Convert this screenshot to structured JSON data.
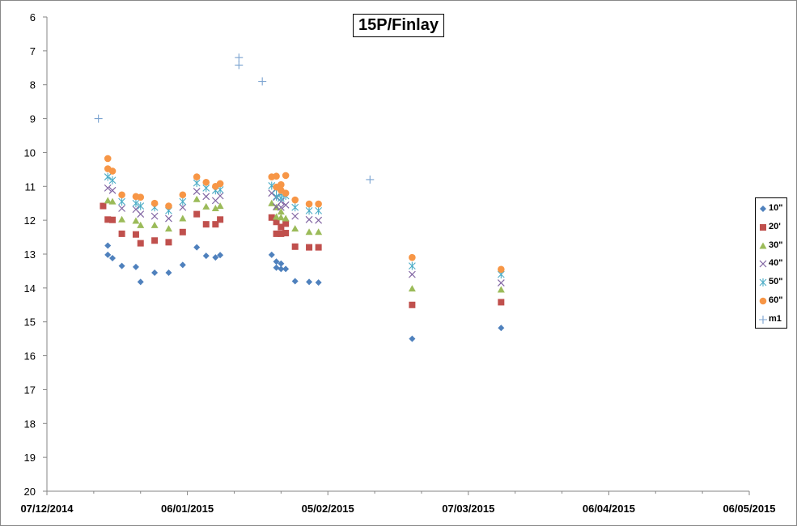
{
  "chart_data": {
    "type": "scatter",
    "title": "15P/Finlay",
    "xlabel": "",
    "ylabel": "",
    "x_ticks": [
      "07/12/2014",
      "06/01/2015",
      "05/02/2015",
      "07/03/2015",
      "06/04/2015",
      "06/05/2015"
    ],
    "y_ticks": [
      "6",
      "7",
      "8",
      "9",
      "10",
      "11",
      "12",
      "13",
      "14",
      "15",
      "16",
      "17",
      "18",
      "19",
      "20"
    ],
    "xlim": [
      "2014-12-07",
      "2015-05-06"
    ],
    "ylim": [
      6,
      20
    ],
    "y_inverted": true,
    "grid": false,
    "legend_position": "right",
    "series": [
      {
        "name": "10\"",
        "marker": "diamond",
        "color": "#4F81BD",
        "points": [
          [
            "2014-12-20",
            12.75
          ],
          [
            "2014-12-20",
            13.02
          ],
          [
            "2014-12-21",
            13.12
          ],
          [
            "2014-12-23",
            13.35
          ],
          [
            "2014-12-26",
            13.38
          ],
          [
            "2014-12-27",
            13.82
          ],
          [
            "2014-12-30",
            13.55
          ],
          [
            "2015-01-02",
            13.55
          ],
          [
            "2015-01-05",
            13.32
          ],
          [
            "2015-01-08",
            12.8
          ],
          [
            "2015-01-10",
            13.05
          ],
          [
            "2015-01-12",
            13.1
          ],
          [
            "2015-01-13",
            13.03
          ],
          [
            "2015-01-24",
            13.02
          ],
          [
            "2015-01-25",
            13.22
          ],
          [
            "2015-01-25",
            13.4
          ],
          [
            "2015-01-26",
            13.28
          ],
          [
            "2015-01-26",
            13.44
          ],
          [
            "2015-01-27",
            13.44
          ],
          [
            "2015-01-29",
            13.8
          ],
          [
            "2015-02-01",
            13.82
          ],
          [
            "2015-02-03",
            13.84
          ],
          [
            "2015-02-23",
            15.5
          ],
          [
            "2015-03-14",
            15.18
          ]
        ]
      },
      {
        "name": "20'",
        "marker": "square",
        "color": "#C0504D",
        "points": [
          [
            "2014-12-19",
            11.58
          ],
          [
            "2014-12-20",
            11.98
          ],
          [
            "2014-12-21",
            11.99
          ],
          [
            "2014-12-23",
            12.4
          ],
          [
            "2014-12-26",
            12.42
          ],
          [
            "2014-12-27",
            12.68
          ],
          [
            "2014-12-30",
            12.6
          ],
          [
            "2015-01-02",
            12.65
          ],
          [
            "2015-01-05",
            12.35
          ],
          [
            "2015-01-08",
            11.82
          ],
          [
            "2015-01-10",
            12.12
          ],
          [
            "2015-01-12",
            12.12
          ],
          [
            "2015-01-13",
            11.98
          ],
          [
            "2015-01-24",
            11.92
          ],
          [
            "2015-01-25",
            12.05
          ],
          [
            "2015-01-25",
            12.4
          ],
          [
            "2015-01-26",
            12.2
          ],
          [
            "2015-01-26",
            12.4
          ],
          [
            "2015-01-27",
            12.1
          ],
          [
            "2015-01-27",
            12.38
          ],
          [
            "2015-01-29",
            12.78
          ],
          [
            "2015-02-01",
            12.8
          ],
          [
            "2015-02-03",
            12.8
          ],
          [
            "2015-02-23",
            14.5
          ],
          [
            "2015-03-14",
            14.42
          ]
        ]
      },
      {
        "name": "30\"",
        "marker": "triangle",
        "color": "#9BBB59",
        "points": [
          [
            "2014-12-20",
            11.42
          ],
          [
            "2014-12-21",
            11.45
          ],
          [
            "2014-12-23",
            11.98
          ],
          [
            "2014-12-26",
            12.02
          ],
          [
            "2014-12-27",
            12.15
          ],
          [
            "2014-12-30",
            12.15
          ],
          [
            "2015-01-02",
            12.25
          ],
          [
            "2015-01-05",
            11.95
          ],
          [
            "2015-01-08",
            11.38
          ],
          [
            "2015-01-10",
            11.6
          ],
          [
            "2015-01-12",
            11.65
          ],
          [
            "2015-01-13",
            11.58
          ],
          [
            "2015-01-24",
            11.5
          ],
          [
            "2015-01-25",
            11.62
          ],
          [
            "2015-01-25",
            11.9
          ],
          [
            "2015-01-26",
            11.75
          ],
          [
            "2015-01-26",
            11.92
          ],
          [
            "2015-01-27",
            11.95
          ],
          [
            "2015-01-29",
            12.25
          ],
          [
            "2015-02-01",
            12.35
          ],
          [
            "2015-02-03",
            12.35
          ],
          [
            "2015-02-23",
            14.02
          ],
          [
            "2015-03-14",
            14.05
          ]
        ]
      },
      {
        "name": "40\"",
        "marker": "x",
        "color": "#8064A2",
        "points": [
          [
            "2014-12-20",
            11.05
          ],
          [
            "2014-12-21",
            11.12
          ],
          [
            "2014-12-23",
            11.65
          ],
          [
            "2014-12-26",
            11.68
          ],
          [
            "2014-12-27",
            11.82
          ],
          [
            "2014-12-30",
            11.88
          ],
          [
            "2015-01-02",
            11.95
          ],
          [
            "2015-01-05",
            11.62
          ],
          [
            "2015-01-08",
            11.15
          ],
          [
            "2015-01-10",
            11.3
          ],
          [
            "2015-01-12",
            11.42
          ],
          [
            "2015-01-13",
            11.28
          ],
          [
            "2015-01-24",
            11.2
          ],
          [
            "2015-01-25",
            11.32
          ],
          [
            "2015-01-25",
            11.6
          ],
          [
            "2015-01-26",
            11.45
          ],
          [
            "2015-01-26",
            11.62
          ],
          [
            "2015-01-27",
            11.55
          ],
          [
            "2015-01-29",
            11.88
          ],
          [
            "2015-02-01",
            11.98
          ],
          [
            "2015-02-03",
            12.0
          ],
          [
            "2015-02-23",
            13.6
          ],
          [
            "2015-03-14",
            13.85
          ]
        ]
      },
      {
        "name": "50\"",
        "marker": "star",
        "color": "#4BACC6",
        "points": [
          [
            "2014-12-20",
            10.72
          ],
          [
            "2014-12-21",
            10.82
          ],
          [
            "2014-12-23",
            11.45
          ],
          [
            "2014-12-26",
            11.5
          ],
          [
            "2014-12-27",
            11.58
          ],
          [
            "2014-12-30",
            11.62
          ],
          [
            "2015-01-02",
            11.72
          ],
          [
            "2015-01-05",
            11.45
          ],
          [
            "2015-01-08",
            10.9
          ],
          [
            "2015-01-10",
            11.05
          ],
          [
            "2015-01-12",
            11.12
          ],
          [
            "2015-01-13",
            11.1
          ],
          [
            "2015-01-24",
            10.98
          ],
          [
            "2015-01-25",
            11.08
          ],
          [
            "2015-01-25",
            11.3
          ],
          [
            "2015-01-26",
            11.22
          ],
          [
            "2015-01-26",
            11.35
          ],
          [
            "2015-01-27",
            11.28
          ],
          [
            "2015-01-29",
            11.62
          ],
          [
            "2015-02-01",
            11.72
          ],
          [
            "2015-02-03",
            11.72
          ],
          [
            "2015-02-23",
            13.35
          ],
          [
            "2015-03-14",
            13.6
          ]
        ]
      },
      {
        "name": "60\"",
        "marker": "circle",
        "color": "#F79646",
        "points": [
          [
            "2014-12-20",
            10.18
          ],
          [
            "2014-12-20",
            10.48
          ],
          [
            "2014-12-21",
            10.55
          ],
          [
            "2014-12-23",
            11.25
          ],
          [
            "2014-12-26",
            11.3
          ],
          [
            "2014-12-27",
            11.32
          ],
          [
            "2014-12-30",
            11.5
          ],
          [
            "2015-01-02",
            11.58
          ],
          [
            "2015-01-05",
            11.25
          ],
          [
            "2015-01-08",
            10.72
          ],
          [
            "2015-01-10",
            10.88
          ],
          [
            "2015-01-12",
            11.0
          ],
          [
            "2015-01-13",
            10.92
          ],
          [
            "2015-01-24",
            10.72
          ],
          [
            "2015-01-25",
            10.7
          ],
          [
            "2015-01-25",
            11.02
          ],
          [
            "2015-01-26",
            10.95
          ],
          [
            "2015-01-26",
            11.12
          ],
          [
            "2015-01-27",
            10.68
          ],
          [
            "2015-01-27",
            11.2
          ],
          [
            "2015-01-29",
            11.4
          ],
          [
            "2015-02-01",
            11.52
          ],
          [
            "2015-02-03",
            11.52
          ],
          [
            "2015-02-23",
            13.1
          ],
          [
            "2015-03-14",
            13.45
          ]
        ]
      },
      {
        "name": "m1",
        "marker": "plus",
        "color": "#7BA3D0",
        "points": [
          [
            "2014-12-18",
            9.0
          ],
          [
            "2015-01-17",
            7.2
          ],
          [
            "2015-01-17",
            7.42
          ],
          [
            "2015-01-22",
            7.9
          ],
          [
            "2015-02-14",
            10.8
          ]
        ]
      }
    ]
  }
}
